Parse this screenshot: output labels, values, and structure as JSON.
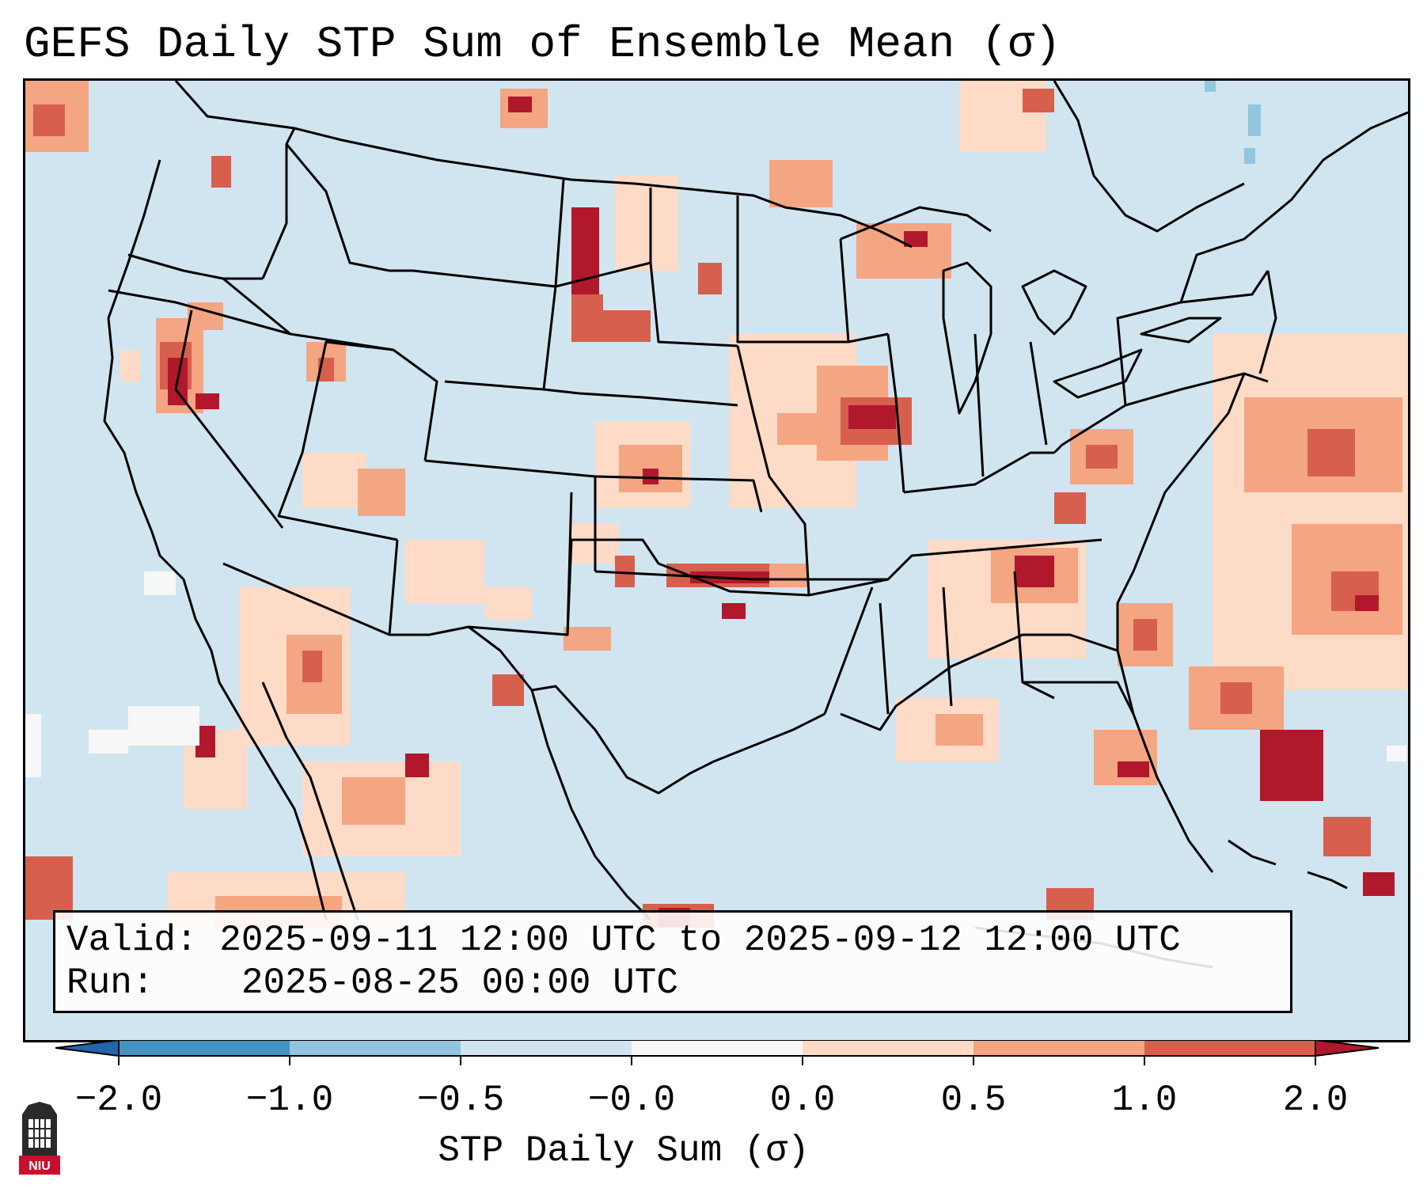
{
  "title": "GEFS Daily STP Sum of Ensemble Mean (σ)",
  "info": {
    "valid_label": "Valid:",
    "valid_value": "2025-09-11 12:00 UTC to 2025-09-12 12:00 UTC",
    "run_label": "Run:",
    "run_value": "2025-08-25 00:00 UTC"
  },
  "colorbar": {
    "label": "STP Daily Sum (σ)",
    "ticks": [
      "−2.0",
      "−1.0",
      "−0.5",
      "−0.0",
      "0.0",
      "0.5",
      "1.0",
      "2.0"
    ],
    "colors": [
      "#4393c3",
      "#92c5de",
      "#d1e5f0",
      "#f7f7f7",
      "#fddbc7",
      "#f4a582",
      "#d6604d",
      "#b2182b"
    ],
    "under_color": "#2166ac",
    "over_color": "#b2182b"
  },
  "map": {
    "background_color": "#d1e5f0",
    "line_color": "#000000",
    "anomaly_categories": [
      "0.0–0.5",
      "0.5–1.0",
      "1.0–2.0",
      ">2.0"
    ]
  },
  "logo": {
    "text": "NIU",
    "color": "#c8102e"
  }
}
